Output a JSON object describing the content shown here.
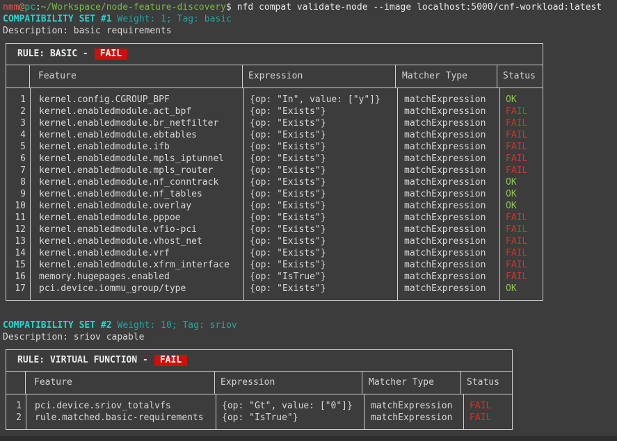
{
  "terminal": {
    "prompt": {
      "user": "nmm",
      "at": "@",
      "host": "pc",
      "separator": ":",
      "path": "~/Workspace/node-feature-discovery",
      "symbol": "$"
    },
    "command": "nfd compat validate-node --image localhost:5000/cnf-workload:latest"
  },
  "sets": [
    {
      "title": "COMPATIBILITY SET #1",
      "meta": "Weight: 1; Tag: basic",
      "description": "Description: basic requirements",
      "rule_label": "RULE: BASIC -",
      "rule_status": "FAIL",
      "columns": [
        "",
        "Feature",
        "Expression",
        "Matcher Type",
        "Status"
      ],
      "rows": [
        [
          "1",
          "kernel.config.CGROUP_BPF",
          "{op: \"In\", value: [\"y\"]}",
          "matchExpression",
          "OK"
        ],
        [
          "2",
          "kernel.enabledmodule.act_bpf",
          "{op: \"Exists\"}",
          "matchExpression",
          "FAIL"
        ],
        [
          "3",
          "kernel.enabledmodule.br_netfilter",
          "{op: \"Exists\"}",
          "matchExpression",
          "FAIL"
        ],
        [
          "4",
          "kernel.enabledmodule.ebtables",
          "{op: \"Exists\"}",
          "matchExpression",
          "FAIL"
        ],
        [
          "5",
          "kernel.enabledmodule.ifb",
          "{op: \"Exists\"}",
          "matchExpression",
          "FAIL"
        ],
        [
          "6",
          "kernel.enabledmodule.mpls_iptunnel",
          "{op: \"Exists\"}",
          "matchExpression",
          "FAIL"
        ],
        [
          "7",
          "kernel.enabledmodule.mpls_router",
          "{op: \"Exists\"}",
          "matchExpression",
          "FAIL"
        ],
        [
          "8",
          "kernel.enabledmodule.nf_conntrack",
          "{op: \"Exists\"}",
          "matchExpression",
          "OK"
        ],
        [
          "9",
          "kernel.enabledmodule.nf_tables",
          "{op: \"Exists\"}",
          "matchExpression",
          "OK"
        ],
        [
          "10",
          "kernel.enabledmodule.overlay",
          "{op: \"Exists\"}",
          "matchExpression",
          "OK"
        ],
        [
          "11",
          "kernel.enabledmodule.pppoe",
          "{op: \"Exists\"}",
          "matchExpression",
          "FAIL"
        ],
        [
          "12",
          "kernel.enabledmodule.vfio-pci",
          "{op: \"Exists\"}",
          "matchExpression",
          "FAIL"
        ],
        [
          "13",
          "kernel.enabledmodule.vhost_net",
          "{op: \"Exists\"}",
          "matchExpression",
          "FAIL"
        ],
        [
          "14",
          "kernel.enabledmodule.vrf",
          "{op: \"Exists\"}",
          "matchExpression",
          "FAIL"
        ],
        [
          "15",
          "kernel.enabledmodule.xfrm_interface",
          "{op: \"Exists\"}",
          "matchExpression",
          "FAIL"
        ],
        [
          "16",
          "memory.hugepages.enabled",
          "{op: \"IsTrue\"}",
          "matchExpression",
          "FAIL"
        ],
        [
          "17",
          "pci.device.iommu_group/type",
          "{op: \"Exists\"}",
          "matchExpression",
          "OK"
        ]
      ]
    },
    {
      "title": "COMPATIBILITY SET #2",
      "meta": "Weight: 10; Tag: sriov",
      "description": "Description: sriov capable",
      "rule_label": "RULE: VIRTUAL FUNCTION -",
      "rule_status": "FAIL",
      "columns": [
        "",
        "Feature",
        "Expression",
        "Matcher Type",
        "Status"
      ],
      "rows": [
        [
          "1",
          "pci.device.sriov_totalvfs",
          "{op: \"Gt\", value: [\"0\"]}",
          "matchExpression",
          "FAIL"
        ],
        [
          "2",
          "rule.matched.basic-requirements",
          "{op: \"IsTrue\"}",
          "matchExpression",
          "FAIL"
        ]
      ]
    }
  ],
  "colors": {
    "background": "#3c3c3c",
    "foreground": "#d8d8d8",
    "border": "#d0d0d0",
    "title_cyan": "#2ed3cb",
    "meta_teal": "#1ea89e",
    "ok_green": "#8bc34a",
    "fail_red": "#cc352b",
    "badge_bg": "#cf0e0e",
    "badge_fg": "#ffffff",
    "prompt_user": "#dd5550",
    "prompt_at": "#de8d3f",
    "prompt_host": "#2fb394",
    "prompt_path": "#7ab648",
    "command": "#e6e6e4",
    "window_edge": "#2e2e2e"
  }
}
